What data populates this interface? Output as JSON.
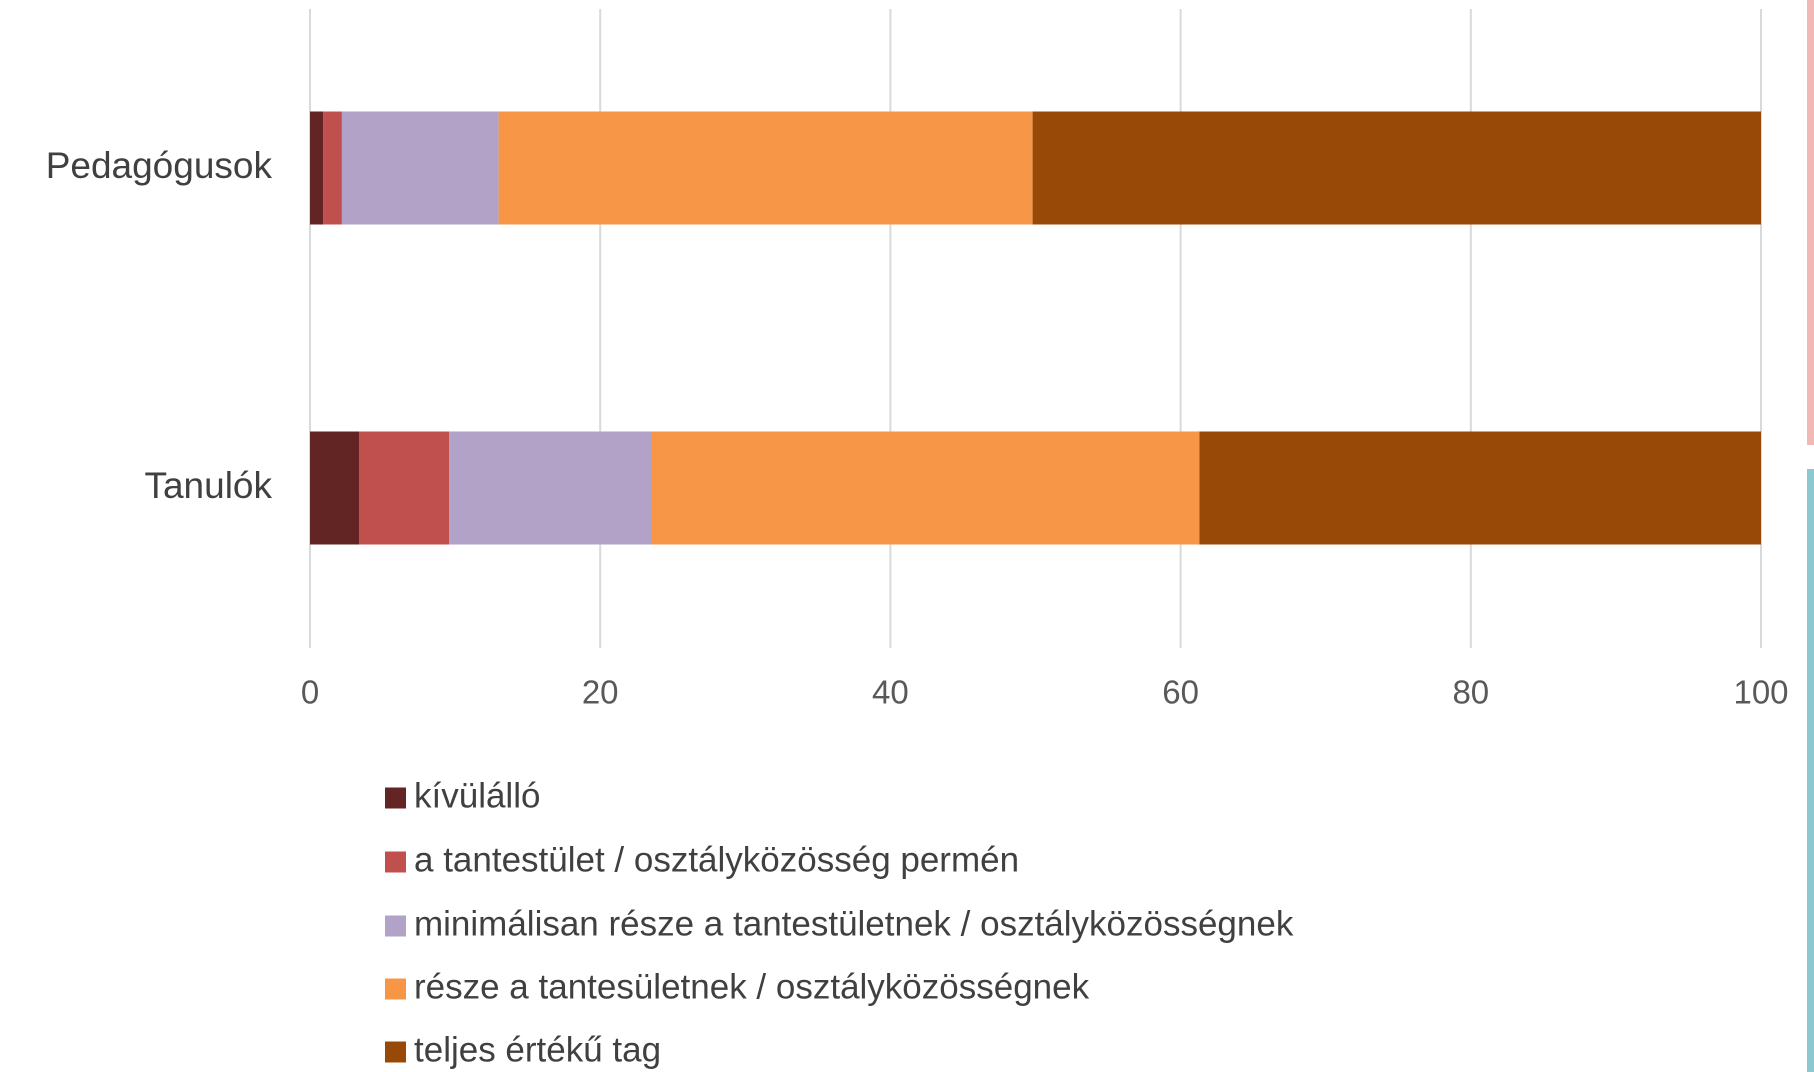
{
  "chart_data": {
    "type": "stacked_bar_horizontal",
    "categories": [
      "Pedagógusok",
      "Tanulók"
    ],
    "series": [
      {
        "name": "kívülálló",
        "color": "#632523",
        "values": [
          0.9,
          3.4
        ]
      },
      {
        "name": "a tantestület / osztályközösség permén",
        "color": "#c0504d",
        "values": [
          1.3,
          6.2
        ]
      },
      {
        "name": "minimálisan része a tantestületnek / osztályközösségnek",
        "color": "#b2a2c7",
        "values": [
          10.8,
          13.9
        ]
      },
      {
        "name": "része a tantesületnek / osztályközösségnek",
        "color": "#f79646",
        "values": [
          36.8,
          37.8
        ]
      },
      {
        "name": "teljes értékű tag",
        "color": "#984807",
        "values": [
          50.2,
          38.7
        ]
      }
    ],
    "xlim": [
      0,
      100
    ],
    "xticks": [
      0,
      20,
      40,
      60,
      80,
      100
    ],
    "grid": true,
    "legend": "bottom"
  }
}
